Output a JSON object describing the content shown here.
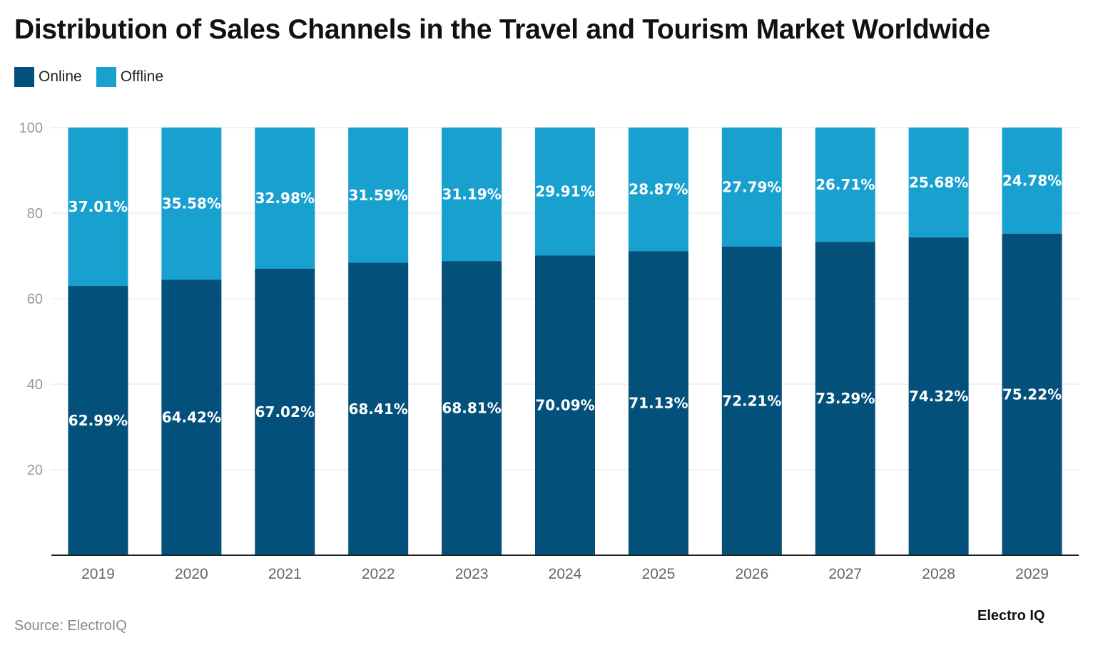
{
  "title": "Distribution of Sales Channels in the Travel and Tourism Market Worldwide",
  "source": "Source: ElectroIQ",
  "logo": "Electro IQ",
  "chart_data": {
    "type": "bar",
    "stacked": true,
    "title": "Distribution of Sales Channels in the Travel and Tourism Market Worldwide",
    "xlabel": "",
    "ylabel": "",
    "ylim": [
      0,
      100
    ],
    "yticks": [
      20,
      40,
      60,
      80,
      100
    ],
    "grid": true,
    "legend_position": "top-left",
    "categories": [
      "2019",
      "2020",
      "2021",
      "2022",
      "2023",
      "2024",
      "2025",
      "2026",
      "2027",
      "2028",
      "2029"
    ],
    "series": [
      {
        "name": "Online",
        "color": "#03507a",
        "values": [
          62.99,
          64.42,
          67.02,
          68.41,
          68.81,
          70.09,
          71.13,
          72.21,
          73.29,
          74.32,
          75.22
        ]
      },
      {
        "name": "Offline",
        "color": "#18a0cf",
        "values": [
          37.01,
          35.58,
          32.98,
          31.59,
          31.19,
          29.91,
          28.87,
          27.79,
          26.71,
          25.68,
          24.78
        ]
      }
    ]
  }
}
